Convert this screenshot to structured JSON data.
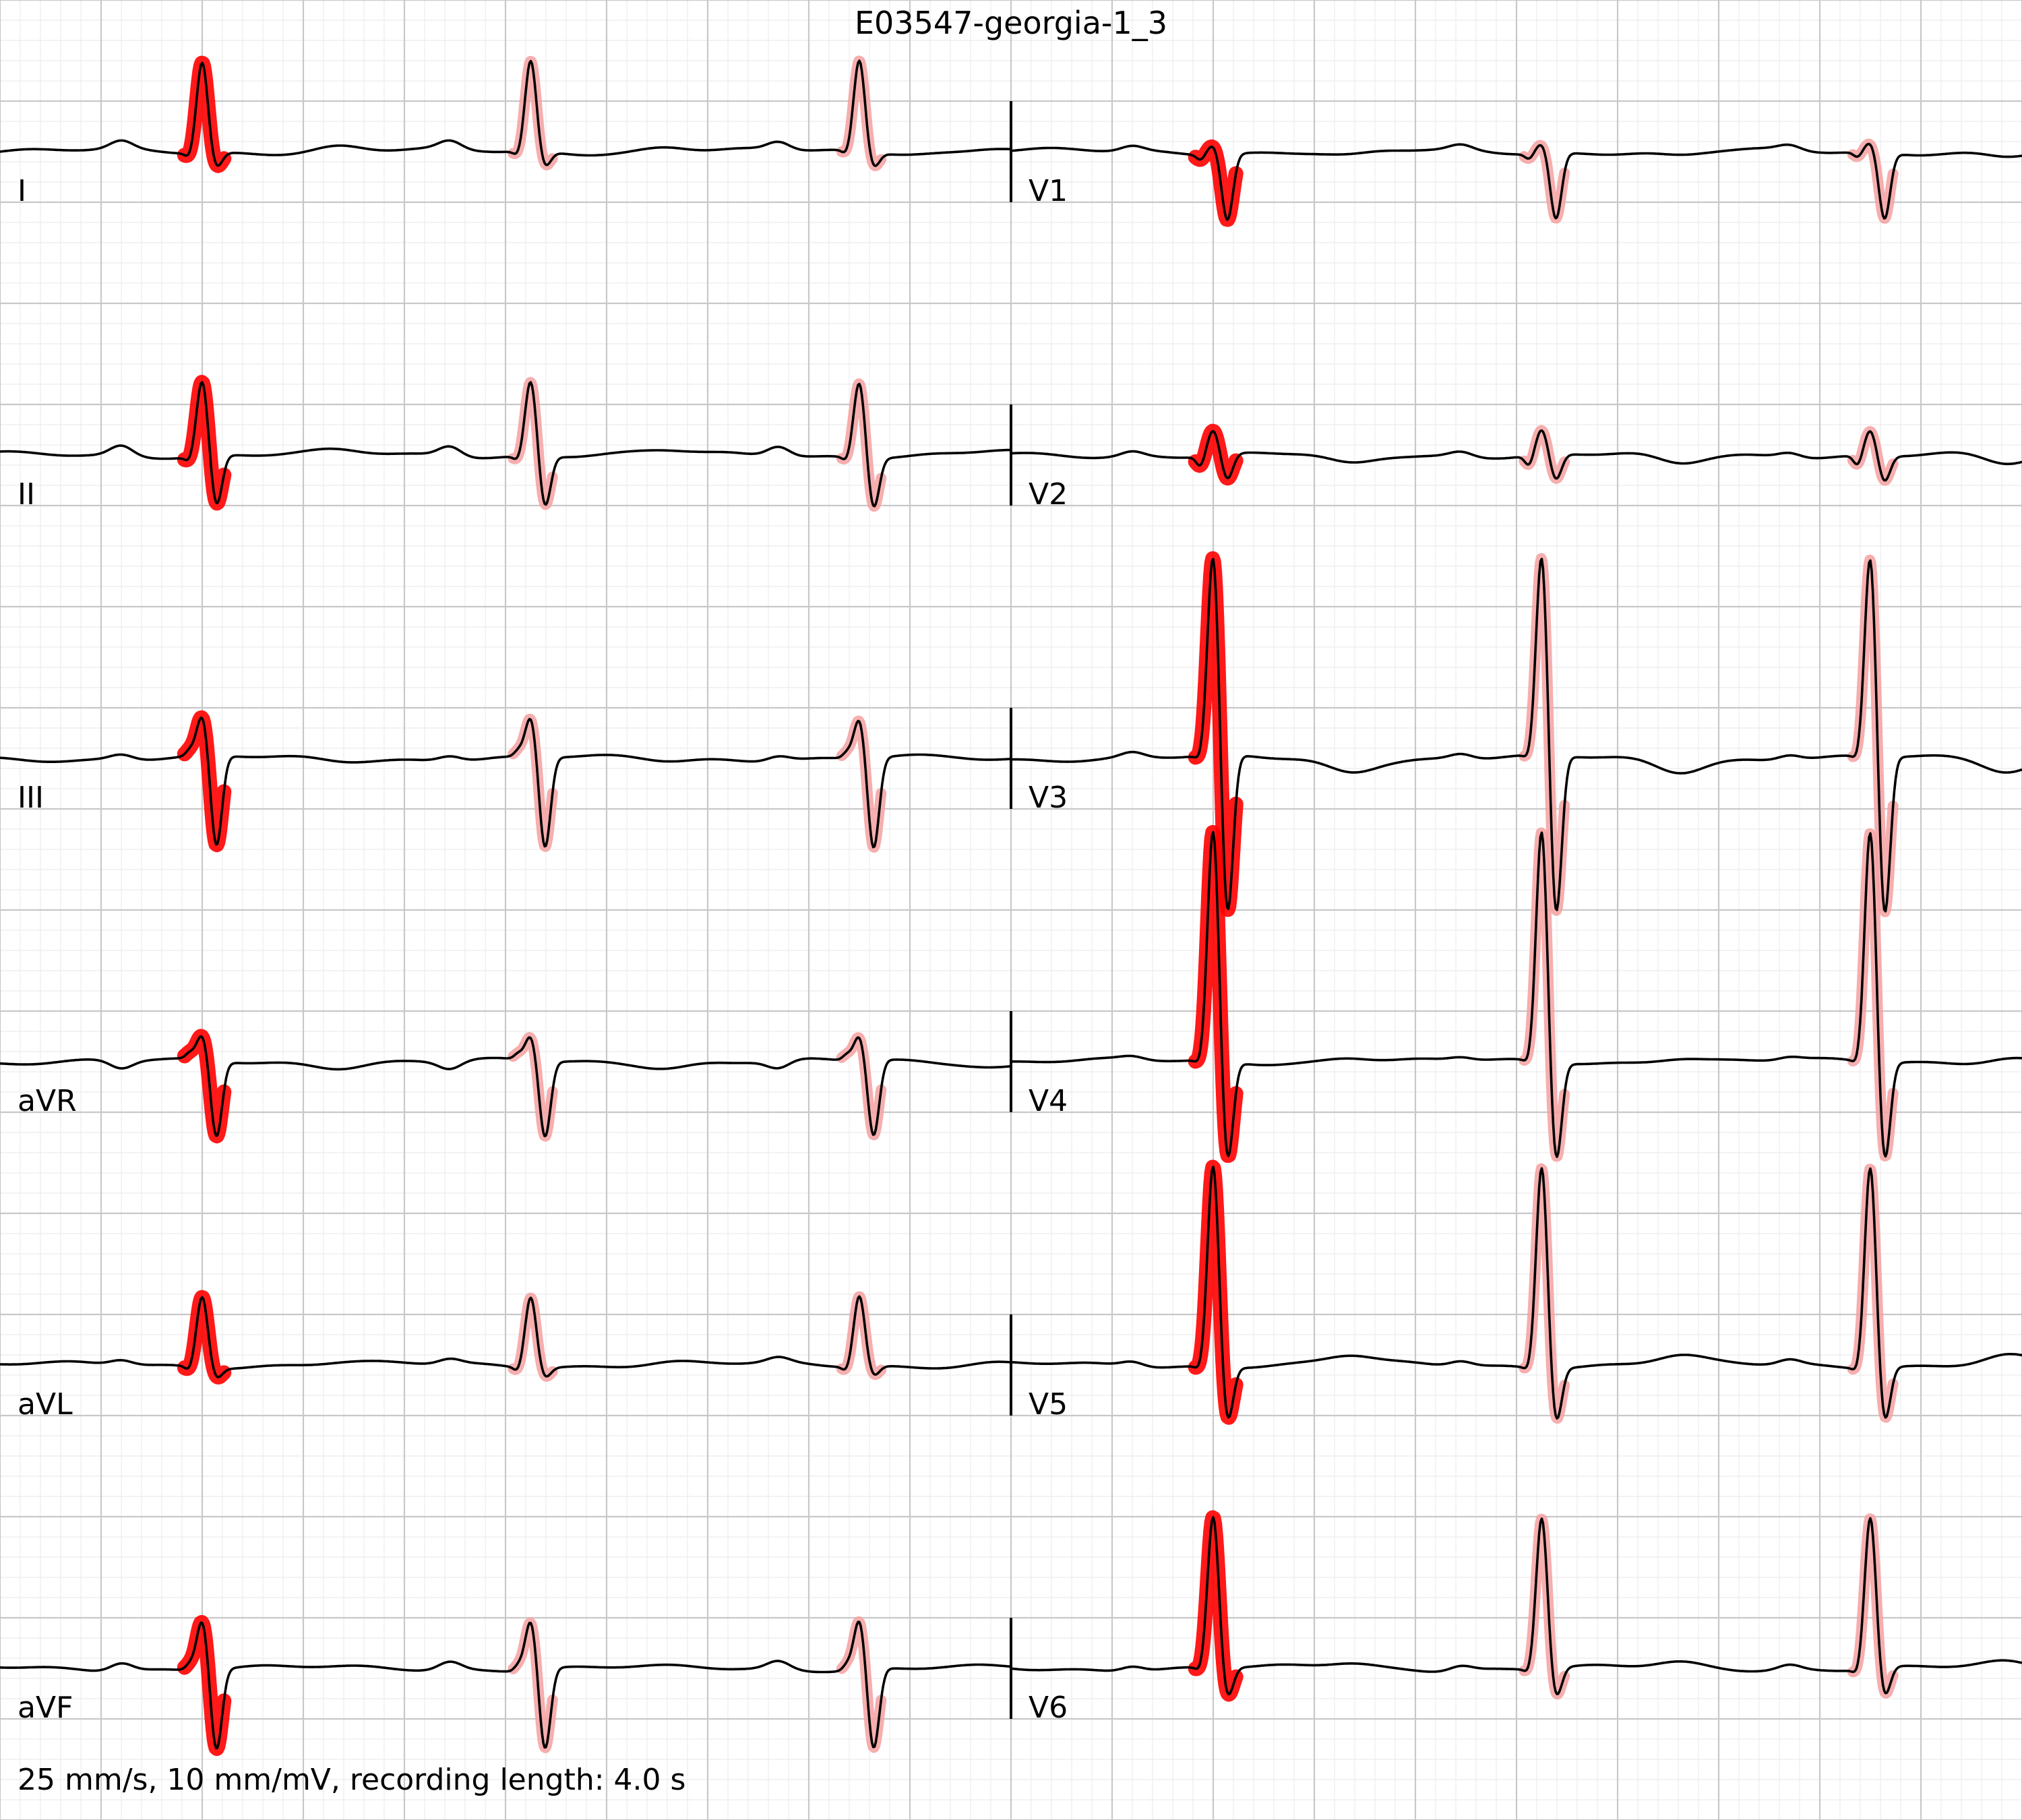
{
  "chart_data": {
    "type": "line",
    "title": "E03547-georgia-1_3",
    "footer": "25 mm/s, 10 mm/mV, recording length: 4.0 s",
    "paper_speed_mm_per_s": 25,
    "gain_mm_per_mV": 10,
    "recording_length_s": 4.0,
    "grid": true,
    "colors": {
      "trace": "#000000",
      "major_grid": "#c8c8c8",
      "minor_grid": "#ececec",
      "highlight_strong": "#ff0000",
      "highlight_faint": "#f4a0a0"
    },
    "columns": [
      {
        "time_window_s": [
          0,
          2
        ],
        "beats_s": [
          0.4,
          1.05,
          1.7
        ],
        "leads": [
          {
            "label": "I",
            "p": 0.08,
            "q": -0.05,
            "r": 0.9,
            "s": -0.15,
            "t": 0.05,
            "hl": 0
          },
          {
            "label": "II",
            "p": 0.1,
            "q": -0.05,
            "r": 0.75,
            "s": -0.5,
            "t": 0.03,
            "hl": 0
          },
          {
            "label": "III",
            "p": 0.05,
            "q": 0.05,
            "r": 0.4,
            "s": -0.9,
            "t": -0.02,
            "hl": 0
          },
          {
            "label": "aVR",
            "p": -0.08,
            "q": 0.05,
            "r": 0.25,
            "s": -0.75,
            "t": -0.04,
            "hl": 0
          },
          {
            "label": "aVL",
            "p": 0.05,
            "q": -0.05,
            "r": 0.7,
            "s": -0.1,
            "t": 0.02,
            "hl": 0
          },
          {
            "label": "aVF",
            "p": 0.08,
            "q": 0.05,
            "r": 0.5,
            "s": -0.8,
            "t": 0.0,
            "hl": 0
          }
        ]
      },
      {
        "time_window_s": [
          2,
          4
        ],
        "beats_s": [
          2.4,
          3.05,
          3.7
        ],
        "leads": [
          {
            "label": "V1",
            "p": 0.05,
            "q": -0.05,
            "r": 0.1,
            "s": -0.65,
            "t": -0.05,
            "hl": 0
          },
          {
            "label": "V2",
            "p": 0.05,
            "q": -0.1,
            "r": 0.25,
            "s": -0.25,
            "t": -0.1,
            "hl": 0
          },
          {
            "label": "V3",
            "p": 0.05,
            "q": -0.05,
            "r": 2.0,
            "s": -1.6,
            "t": -0.12,
            "hl": 0
          },
          {
            "label": "V4",
            "p": 0.03,
            "q": -0.05,
            "r": 2.3,
            "s": -1.0,
            "t": 0.05,
            "hl": 0
          },
          {
            "label": "V5",
            "p": 0.05,
            "q": -0.05,
            "r": 2.0,
            "s": -0.55,
            "t": 0.08,
            "hl": 0
          },
          {
            "label": "V6",
            "p": 0.05,
            "q": -0.05,
            "r": 1.5,
            "s": -0.3,
            "t": 0.05,
            "hl": 0
          }
        ]
      }
    ]
  }
}
